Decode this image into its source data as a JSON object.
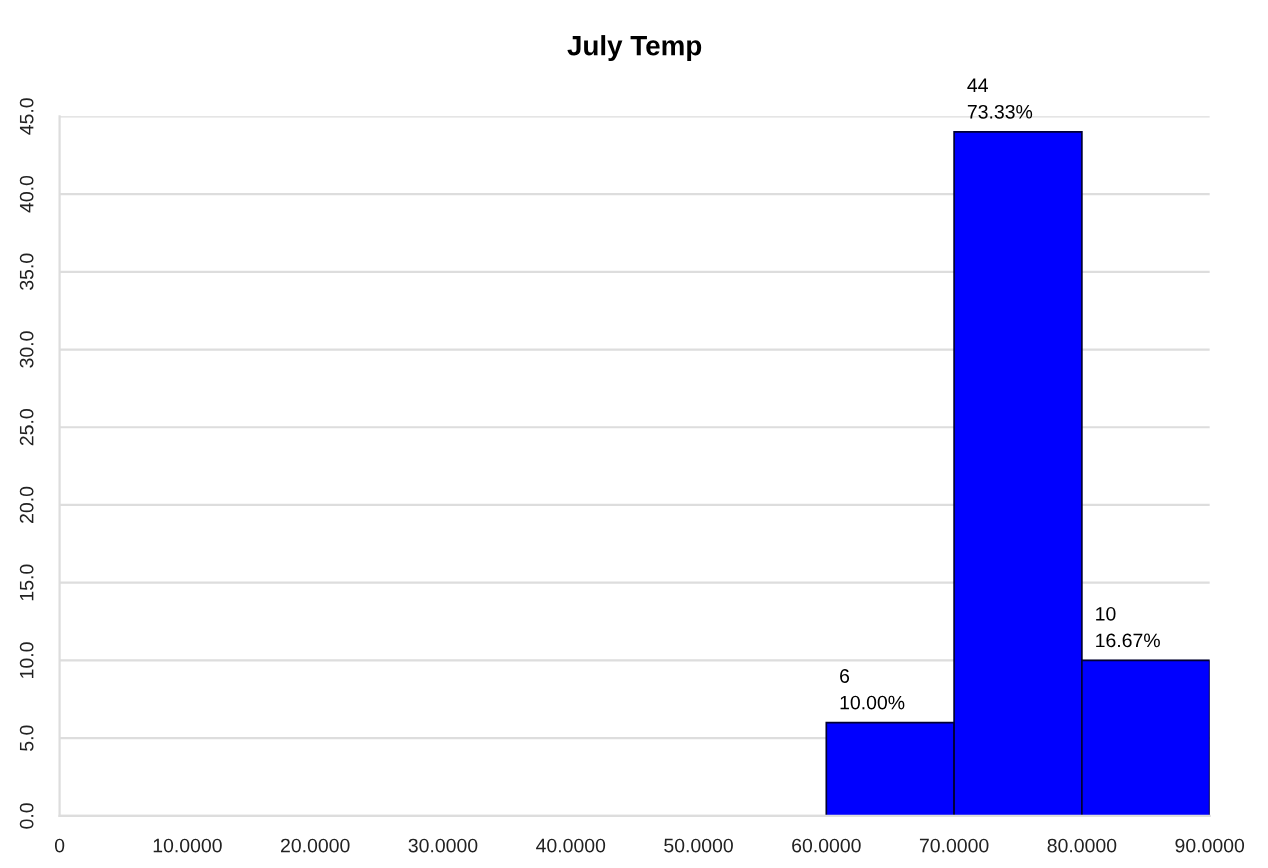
{
  "chart_data": {
    "type": "histogram",
    "title": "July Temp",
    "bins": [
      0,
      10,
      20,
      30,
      40,
      50,
      60,
      70,
      80,
      90
    ],
    "values": [
      0,
      0,
      0,
      0,
      0,
      0,
      6,
      44,
      10
    ],
    "value_labels": [
      null,
      null,
      null,
      null,
      null,
      null,
      "6\n10.00%",
      "44\n73.33%",
      "10\n16.67%"
    ],
    "color": "#0000ff",
    "xlim": [
      0,
      90
    ],
    "xticks": [
      0,
      {
        "value": 10,
        "label": "10.0000"
      },
      {
        "value": 20,
        "label": "20.0000"
      },
      {
        "value": 30,
        "label": "30.0000"
      },
      {
        "value": 40,
        "label": "40.0000"
      },
      {
        "value": 50,
        "label": "50.0000"
      },
      {
        "value": 60,
        "label": "60.0000"
      },
      {
        "value": 70,
        "label": "70.0000"
      },
      {
        "value": 80,
        "label": "80.0000"
      },
      {
        "value": 90,
        "label": "90.0000"
      }
    ],
    "ylim": [
      0,
      45
    ],
    "yticks": [
      {
        "value": 0,
        "label": "0.0"
      },
      {
        "value": 5,
        "label": "5.0"
      },
      {
        "value": 10,
        "label": "10.0"
      },
      {
        "value": 15,
        "label": "15.0"
      },
      {
        "value": 20,
        "label": "20.0"
      },
      {
        "value": 25,
        "label": "25.0"
      },
      {
        "value": 30,
        "label": "30.0"
      },
      {
        "value": 35,
        "label": "35.0"
      },
      {
        "value": 40,
        "label": "40.0"
      },
      {
        "value": 45,
        "label": "45.0"
      }
    ],
    "grid": "y"
  }
}
